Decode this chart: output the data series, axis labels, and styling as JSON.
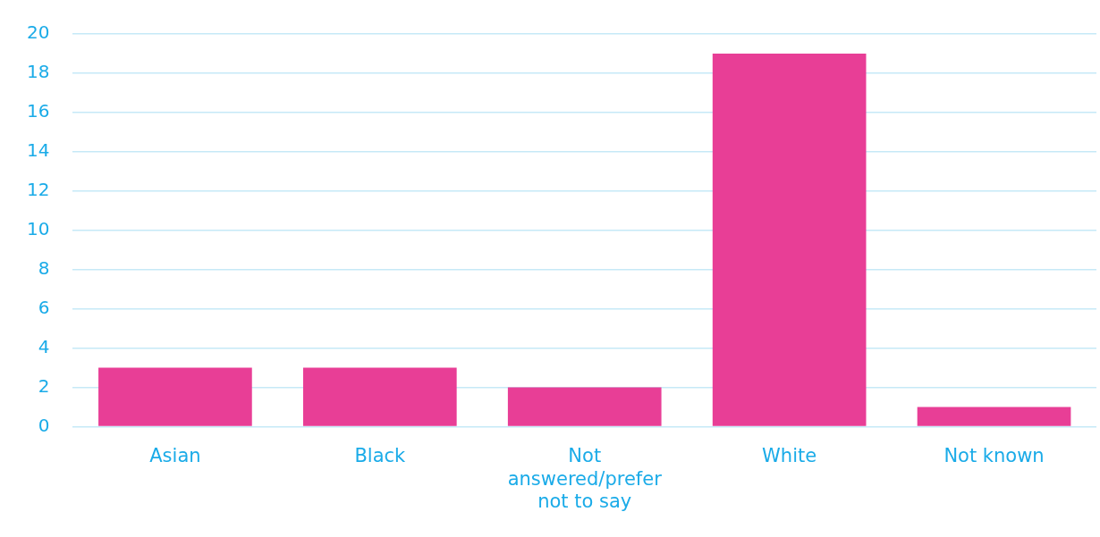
{
  "chart_data": {
    "type": "bar",
    "categories": [
      "Asian",
      "Black",
      "Not answered/prefer not to say",
      "White",
      "Not known"
    ],
    "values": [
      3,
      3,
      2,
      19,
      1
    ],
    "color": "#e83e96",
    "ylim": [
      0,
      20
    ],
    "yticks": [
      0,
      2,
      4,
      6,
      8,
      10,
      12,
      14,
      16,
      18,
      20
    ],
    "grid": "y",
    "legend": false
  }
}
